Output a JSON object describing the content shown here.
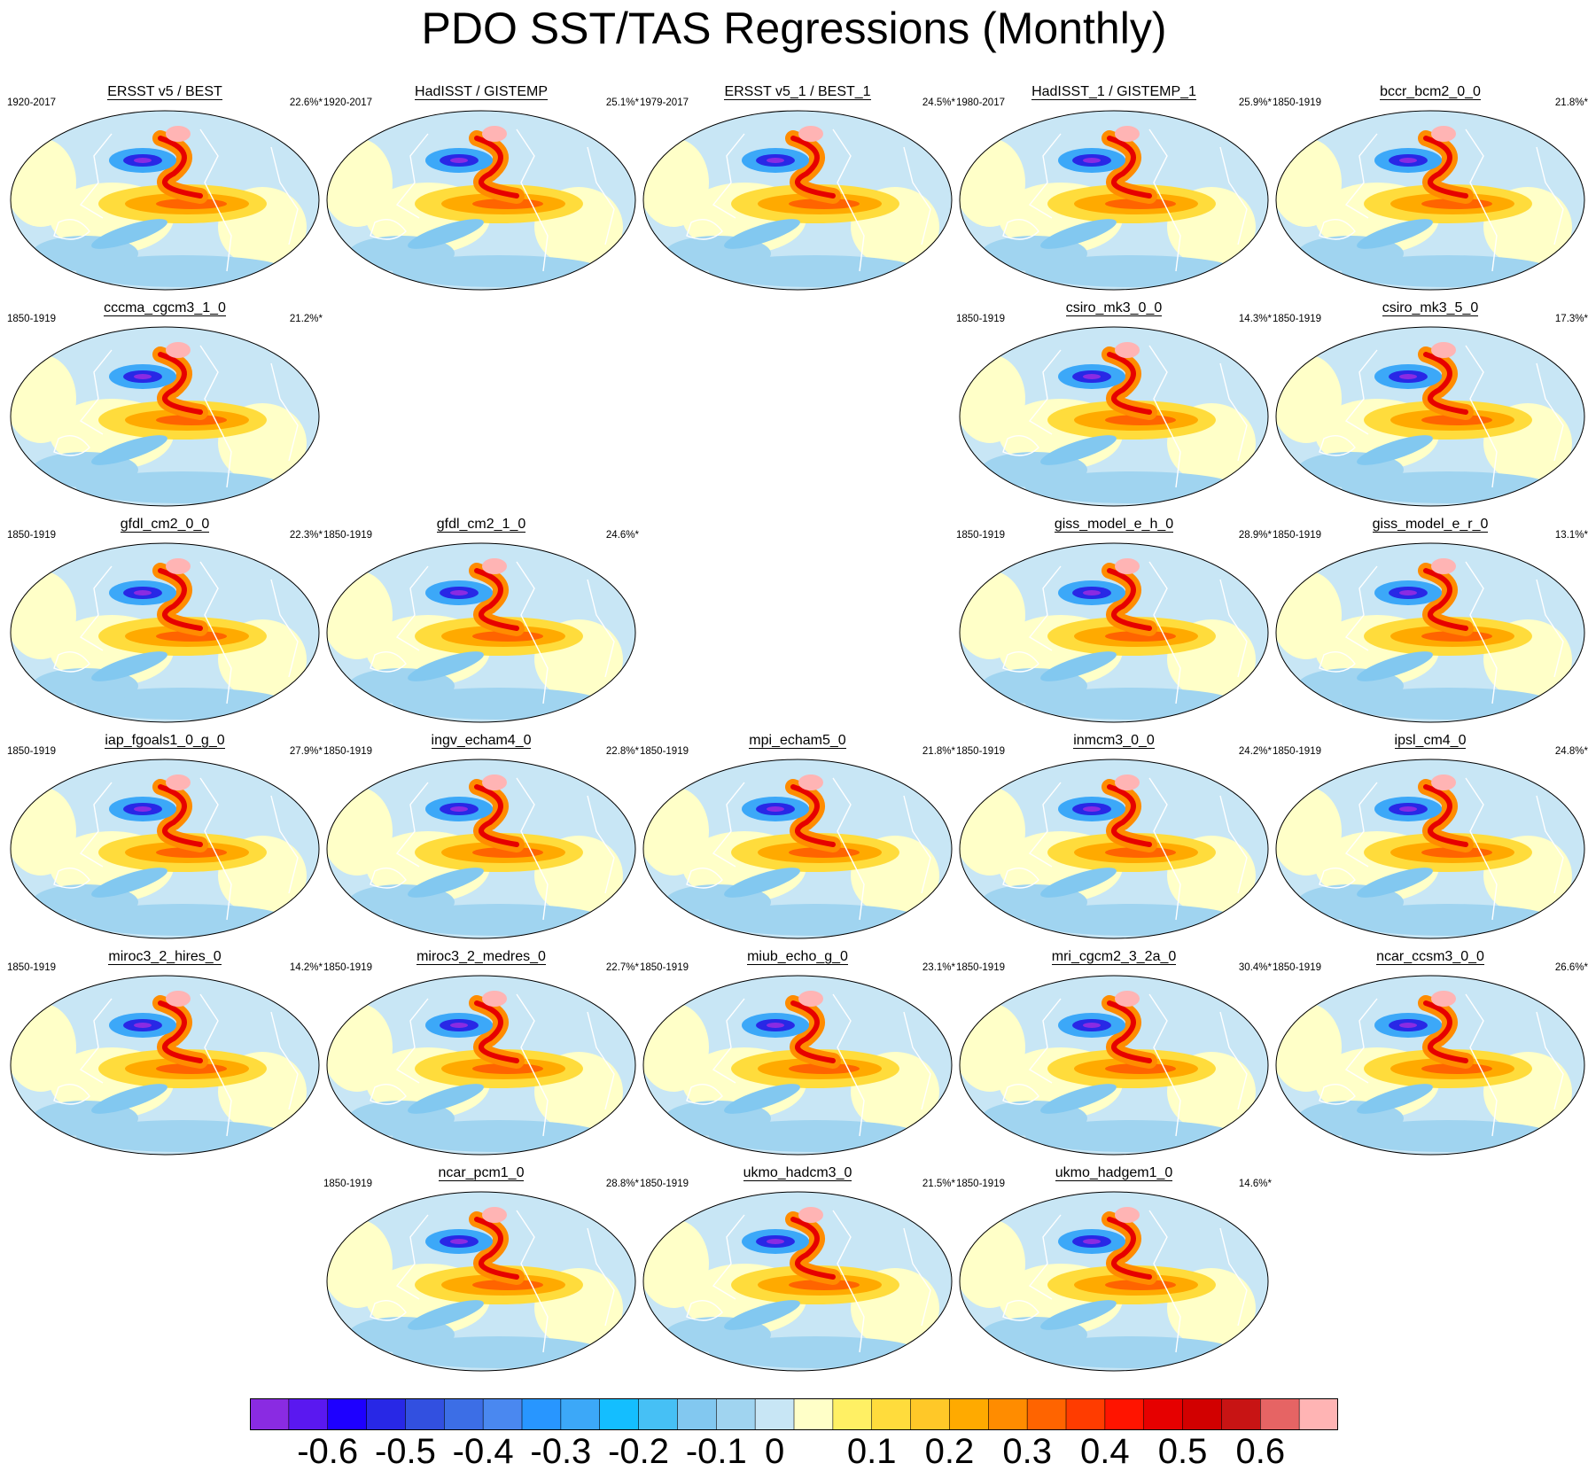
{
  "title": "PDO SST/TAS Regressions (Monthly)",
  "panels": [
    {
      "name": "ERSST v5 / BEST",
      "period": "1920-2017",
      "pct": "22.6%*",
      "row": 0,
      "col": 0
    },
    {
      "name": "HadISST / GISTEMP",
      "period": "1920-2017",
      "pct": "25.1%*",
      "row": 0,
      "col": 1
    },
    {
      "name": "ERSST v5_1 / BEST_1",
      "period": "1979-2017",
      "pct": "24.5%*",
      "row": 0,
      "col": 2
    },
    {
      "name": "HadISST_1 / GISTEMP_1",
      "period": "1980-2017",
      "pct": "25.9%*",
      "row": 0,
      "col": 3
    },
    {
      "name": "bccr_bcm2_0_0",
      "period": "1850-1919",
      "pct": "21.8%*",
      "row": 0,
      "col": 4
    },
    {
      "name": "cccma_cgcm3_1_0",
      "period": "1850-1919",
      "pct": "21.2%*",
      "row": 1,
      "col": 0
    },
    {
      "name": "csiro_mk3_0_0",
      "period": "1850-1919",
      "pct": "14.3%*",
      "row": 1,
      "col": 3
    },
    {
      "name": "csiro_mk3_5_0",
      "period": "1850-1919",
      "pct": "17.3%*",
      "row": 1,
      "col": 4
    },
    {
      "name": "gfdl_cm2_0_0",
      "period": "1850-1919",
      "pct": "22.3%*",
      "row": 2,
      "col": 0
    },
    {
      "name": "gfdl_cm2_1_0",
      "period": "1850-1919",
      "pct": "24.6%*",
      "row": 2,
      "col": 1
    },
    {
      "name": "giss_model_e_h_0",
      "period": "1850-1919",
      "pct": "28.9%*",
      "row": 2,
      "col": 3
    },
    {
      "name": "giss_model_e_r_0",
      "period": "1850-1919",
      "pct": "13.1%*",
      "row": 2,
      "col": 4
    },
    {
      "name": "iap_fgoals1_0_g_0",
      "period": "1850-1919",
      "pct": "27.9%*",
      "row": 3,
      "col": 0
    },
    {
      "name": "ingv_echam4_0",
      "period": "1850-1919",
      "pct": "22.8%*",
      "row": 3,
      "col": 1
    },
    {
      "name": "mpi_echam5_0",
      "period": "1850-1919",
      "pct": "21.8%*",
      "row": 3,
      "col": 2
    },
    {
      "name": "inmcm3_0_0",
      "period": "1850-1919",
      "pct": "24.2%*",
      "row": 3,
      "col": 3
    },
    {
      "name": "ipsl_cm4_0",
      "period": "1850-1919",
      "pct": "24.8%*",
      "row": 3,
      "col": 4
    },
    {
      "name": "miroc3_2_hires_0",
      "period": "1850-1919",
      "pct": "14.2%*",
      "row": 4,
      "col": 0
    },
    {
      "name": "miroc3_2_medres_0",
      "period": "1850-1919",
      "pct": "22.7%*",
      "row": 4,
      "col": 1
    },
    {
      "name": "miub_echo_g_0",
      "period": "1850-1919",
      "pct": "23.1%*",
      "row": 4,
      "col": 2
    },
    {
      "name": "mri_cgcm2_3_2a_0",
      "period": "1850-1919",
      "pct": "30.4%*",
      "row": 4,
      "col": 3
    },
    {
      "name": "ncar_ccsm3_0_0",
      "period": "1850-1919",
      "pct": "26.6%*",
      "row": 4,
      "col": 4
    },
    {
      "name": "ncar_pcm1_0",
      "period": "1850-1919",
      "pct": "28.8%*",
      "row": 5,
      "col": 1
    },
    {
      "name": "ukmo_hadcm3_0",
      "period": "1850-1919",
      "pct": "21.5%*",
      "row": 5,
      "col": 2
    },
    {
      "name": "ukmo_hadgem1_0",
      "period": "1850-1919",
      "pct": "14.6%*",
      "row": 5,
      "col": 3
    }
  ],
  "colorbar": {
    "colors": [
      "#8a2be2",
      "#5a18f0",
      "#1e00ff",
      "#2828e6",
      "#3250e0",
      "#3c6ee6",
      "#4a88f0",
      "#2896ff",
      "#3ca8f8",
      "#14beff",
      "#46c0f5",
      "#82c8f0",
      "#a0d4f0",
      "#c8e6f5",
      "#ffffc8",
      "#fff064",
      "#ffdc3c",
      "#ffc828",
      "#ffaa00",
      "#ff8c00",
      "#ff6400",
      "#ff3c00",
      "#ff1400",
      "#e60000",
      "#d20000",
      "#c81414",
      "#e66464",
      "#ffb4b4"
    ],
    "tick_values": [
      -0.6,
      -0.5,
      -0.4,
      -0.3,
      -0.2,
      -0.1,
      0,
      0.1,
      0.2,
      0.3,
      0.4,
      0.5,
      0.6
    ],
    "tick_labels": [
      "-0.6",
      "-0.5",
      "-0.4",
      "-0.3",
      "-0.2",
      "-0.1",
      "0",
      "0.1",
      "0.2",
      "0.3",
      "0.4",
      "0.5",
      "0.6"
    ]
  }
}
